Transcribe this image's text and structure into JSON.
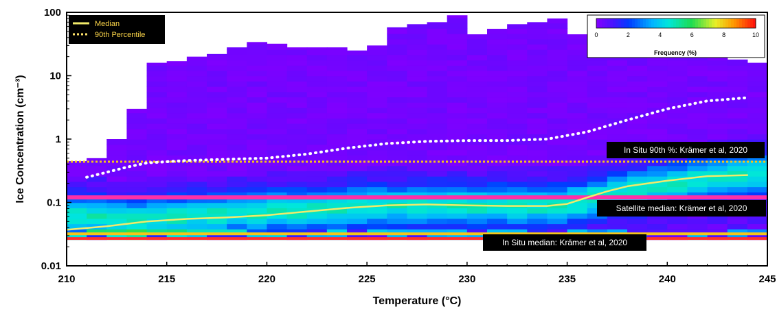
{
  "chart_data": {
    "type": "heatmap",
    "title": "",
    "xlabel": "Temperature (°C)",
    "ylabel": "Ice Concentration (cm⁻³)",
    "xlim": [
      210,
      245
    ],
    "ylim": [
      0.01,
      100
    ],
    "y_scale": "log",
    "x_ticks": [
      "210",
      "215",
      "220",
      "225",
      "230",
      "235",
      "240",
      "245"
    ],
    "y_ticks": [
      "0.01",
      "0.1",
      "1",
      "10",
      "100"
    ],
    "colorbar": {
      "label": "Frequency (%)",
      "range": [
        0,
        10
      ],
      "ticks": [
        "0",
        "2",
        "4",
        "6",
        "8",
        "10"
      ]
    },
    "heatmap": {
      "x_start": 210,
      "x_end": 244,
      "bin_width": 1,
      "column_tops": [
        0.45,
        0.5,
        1.0,
        3.0,
        16,
        17,
        20,
        22,
        28,
        34,
        32,
        28,
        28,
        28,
        25,
        30,
        58,
        65,
        70,
        90,
        45,
        55,
        65,
        70,
        80,
        45,
        50,
        40,
        35,
        30,
        28,
        25,
        20,
        18,
        16
      ],
      "density_peak_y": [
        0.06,
        0.06,
        0.055,
        0.055,
        0.06,
        0.06,
        0.065,
        0.065,
        0.07,
        0.07,
        0.075,
        0.075,
        0.08,
        0.08,
        0.085,
        0.09,
        0.09,
        0.09,
        0.095,
        0.095,
        0.09,
        0.09,
        0.09,
        0.09,
        0.09,
        0.1,
        0.12,
        0.14,
        0.16,
        0.18,
        0.2,
        0.22,
        0.24,
        0.26,
        0.28
      ],
      "y_min": 0.026
    },
    "series": [
      {
        "name": "Median",
        "color": "#f2ea6a",
        "style": "solid",
        "x": [
          210,
          212,
          214,
          216,
          218,
          220,
          222,
          224,
          226,
          228,
          230,
          232,
          234,
          235,
          236,
          237,
          238,
          240,
          242,
          244
        ],
        "y": [
          0.037,
          0.042,
          0.05,
          0.055,
          0.058,
          0.063,
          0.072,
          0.082,
          0.09,
          0.093,
          0.09,
          0.088,
          0.088,
          0.095,
          0.12,
          0.15,
          0.18,
          0.22,
          0.26,
          0.27
        ]
      },
      {
        "name": "90th Percentile",
        "color": "#ffffff",
        "style": "dotted",
        "x": [
          211,
          212,
          213,
          214,
          216,
          218,
          220,
          222,
          224,
          226,
          228,
          230,
          232,
          234,
          236,
          238,
          240,
          242,
          244
        ],
        "y": [
          0.25,
          0.3,
          0.36,
          0.42,
          0.46,
          0.48,
          0.5,
          0.58,
          0.72,
          0.85,
          0.92,
          0.95,
          0.95,
          1.0,
          1.3,
          2.0,
          3.0,
          4.0,
          4.5
        ]
      }
    ],
    "reference_lines": [
      {
        "label": "In Situ 90th %: Krämer et al, 2020",
        "y": 0.44,
        "color": "#f5c518",
        "style": "dotted"
      },
      {
        "label": "Satellite median: Krämer et al, 2020",
        "y": 0.12,
        "color": "#ff2fa8",
        "style": "solid"
      },
      {
        "label": "In Situ median: Krämer et al, 2020",
        "y": 0.032,
        "color": "#f5c518",
        "style": "solid"
      },
      {
        "label": "",
        "y": 0.027,
        "color": "#ff3030",
        "style": "solid"
      }
    ],
    "legend": {
      "placement": "top-left",
      "entries": [
        "Median",
        "90th Percentile"
      ]
    },
    "grid": false
  }
}
